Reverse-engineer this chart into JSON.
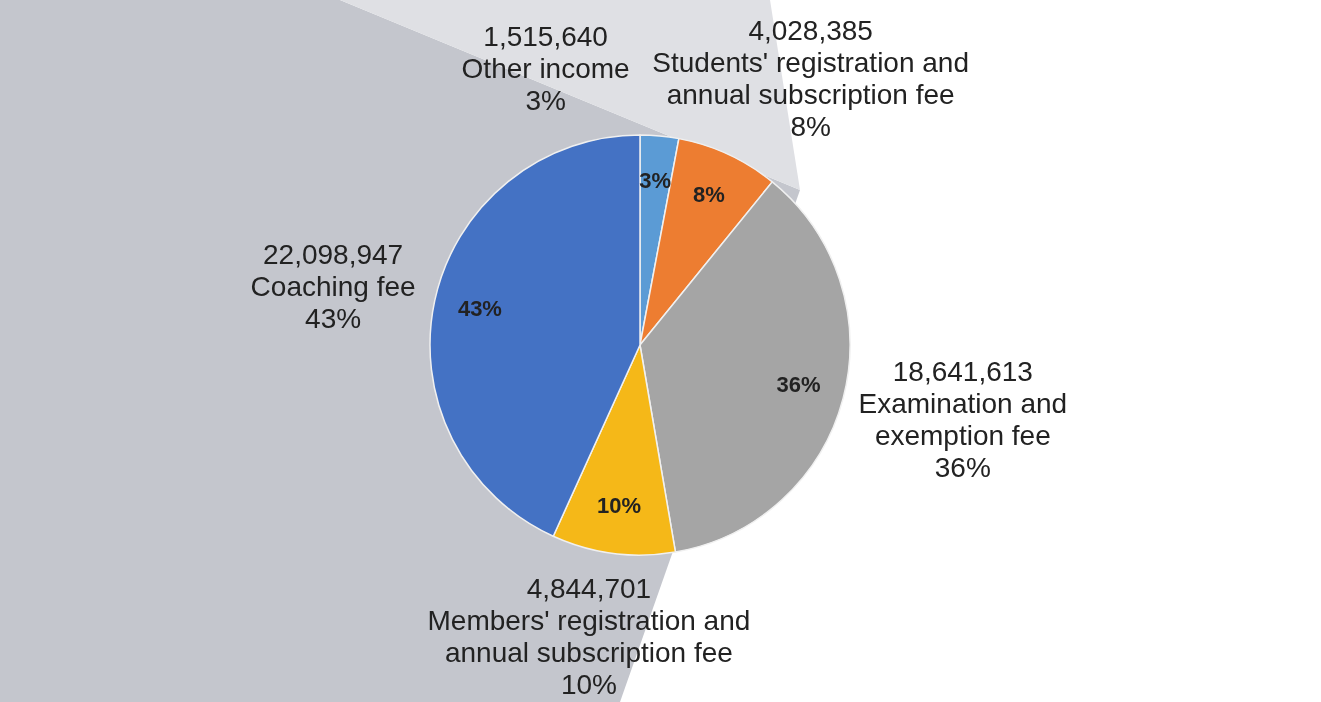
{
  "chart_data": {
    "type": "pie",
    "categories": [
      "Other income",
      "Students' registration and annual subscription fee",
      "Examination and exemption fee",
      "Members' registration and annual subscription fee",
      "Coaching fee"
    ],
    "values": [
      1515640,
      4028385,
      18641613,
      4844701,
      22098947
    ],
    "colors": [
      "#5b9bd5",
      "#ed7d31",
      "#a5a5a5",
      "#f5b818",
      "#4472c4"
    ],
    "value_labels": [
      "1,515,640",
      "4,028,385",
      "18,641,613",
      "4,844,701",
      "22,098,947"
    ],
    "annotations": [
      "3%",
      "8%",
      "36%",
      "10%",
      "43%"
    ]
  }
}
